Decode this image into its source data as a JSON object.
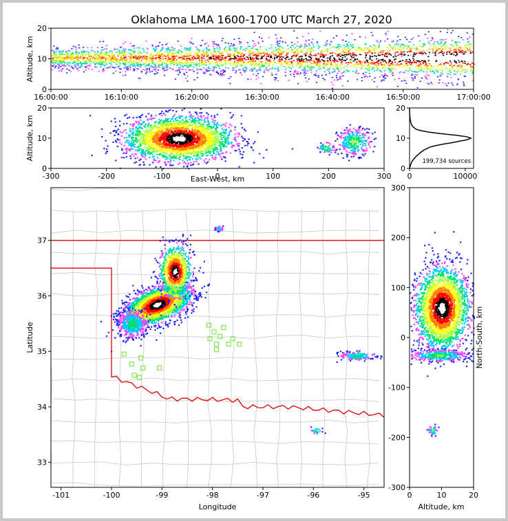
{
  "figure": {
    "title": "Oklahoma LMA 1600-1700 UTC March 27, 2020",
    "source_count_label": "199,734 sources"
  },
  "colors": {
    "state_border": "#e00000",
    "county_lines": "#c8c8c8",
    "stations": "#7fe84a",
    "density_ramp": [
      "#2020ff",
      "#ff40ff",
      "#00c8ff",
      "#00e070",
      "#a0ff40",
      "#ffff00",
      "#ff8000",
      "#ff0000",
      "#000000",
      "#ffffff"
    ]
  },
  "chart_data": [
    {
      "id": "time-height",
      "type": "heatmap",
      "xlabel": "",
      "ylabel": "Altitude, km",
      "x_ticks": [
        "16:00:00",
        "16:10:00",
        "16:20:00",
        "16:30:00",
        "16:40:00",
        "16:50:00",
        "17:00:00"
      ],
      "xlim": [
        "16:00:00",
        "17:00:00"
      ],
      "ylim": [
        0,
        20
      ],
      "y_ticks": [
        0,
        10,
        20
      ]
    },
    {
      "id": "ew-height",
      "type": "heatmap",
      "xlabel": "East-West, km",
      "ylabel": "Altitude, km",
      "xlim": [
        -300,
        300
      ],
      "x_ticks": [
        -300,
        -200,
        -100,
        0,
        100,
        200,
        300
      ],
      "ylim": [
        0,
        20
      ],
      "y_ticks": [
        0,
        10,
        20
      ],
      "clusters": [
        {
          "x": -70,
          "alt": 10,
          "extent_x": 95,
          "extent_alt": 8
        },
        {
          "x": 245,
          "alt": 9,
          "extent_x": 30,
          "extent_alt": 5
        },
        {
          "x": 195,
          "alt": 7,
          "extent_x": 15,
          "extent_alt": 2
        }
      ]
    },
    {
      "id": "altitude-histogram",
      "type": "line",
      "xlabel": "",
      "ylabel": "",
      "xlim": [
        0,
        11500
      ],
      "x_ticks": [
        0,
        10000
      ],
      "ylim": [
        0,
        20
      ],
      "y_ticks": [
        0,
        10,
        20
      ],
      "series": [
        {
          "alt": [
            0,
            1,
            2,
            3,
            4,
            5,
            6,
            7,
            7.5,
            8,
            8.5,
            9,
            9.5,
            10,
            10.5,
            11,
            11.5,
            12,
            12.5,
            13,
            14,
            15,
            16,
            17,
            18,
            19,
            20
          ],
          "count": [
            0,
            150,
            350,
            700,
            1200,
            1800,
            2500,
            3600,
            4600,
            6000,
            7600,
            9000,
            10400,
            11000,
            10200,
            8200,
            5600,
            3500,
            2000,
            1100,
            500,
            250,
            120,
            60,
            30,
            10,
            0
          ]
        }
      ]
    },
    {
      "id": "plan-view",
      "type": "heatmap",
      "xlabel": "Longitude",
      "ylabel": "Latitude",
      "xlim": [
        -101.2,
        -94.6
      ],
      "x_ticks": [
        -101,
        -100,
        -99,
        -98,
        -97,
        -96,
        -95
      ],
      "ylim": [
        32.55,
        37.95
      ],
      "y_ticks": [
        33,
        34,
        35,
        36,
        37
      ],
      "stations": [
        [
          -99.75,
          34.95
        ],
        [
          -99.6,
          34.77
        ],
        [
          -99.42,
          34.88
        ],
        [
          -99.38,
          34.7
        ],
        [
          -99.55,
          34.57
        ],
        [
          -99.45,
          34.53
        ],
        [
          -99.05,
          34.7
        ],
        [
          -98.07,
          35.47
        ],
        [
          -97.97,
          35.35
        ],
        [
          -97.85,
          35.27
        ],
        [
          -98.05,
          35.23
        ],
        [
          -97.92,
          35.13
        ],
        [
          -97.78,
          35.43
        ],
        [
          -97.6,
          35.23
        ],
        [
          -97.47,
          35.13
        ],
        [
          -97.68,
          35.13
        ],
        [
          -97.92,
          35.03
        ]
      ],
      "clusters": [
        {
          "lon": -99.1,
          "lat": 35.85,
          "extent_lon": 0.55,
          "extent_lat": 0.35
        },
        {
          "lon": -98.75,
          "lat": 36.45,
          "extent_lon": 0.3,
          "extent_lat": 0.45
        },
        {
          "lon": -99.6,
          "lat": 35.5,
          "extent_lon": 0.3,
          "extent_lat": 0.25
        },
        {
          "lon": -95.15,
          "lat": 34.93,
          "extent_lon": 0.35,
          "extent_lat": 0.08
        },
        {
          "lon": -97.88,
          "lat": 37.22,
          "extent_lon": 0.08,
          "extent_lat": 0.05
        },
        {
          "lon": -95.95,
          "lat": 33.58,
          "extent_lon": 0.12,
          "extent_lat": 0.06
        }
      ]
    },
    {
      "id": "ns-height",
      "type": "heatmap",
      "xlabel": "Altitude, km",
      "ylabel": "North-South, km",
      "xlim": [
        0,
        20
      ],
      "x_ticks": [
        0,
        10,
        20
      ],
      "ylim": [
        -300,
        300
      ],
      "y_ticks": [
        -300,
        -200,
        -100,
        0,
        100,
        200,
        300
      ],
      "clusters": [
        {
          "alt": 10,
          "y": 60,
          "extent_alt": 9,
          "extent_y": 80
        },
        {
          "alt": 9,
          "y": -35,
          "extent_alt": 10,
          "extent_y": 12
        },
        {
          "alt": 7,
          "y": -185,
          "extent_alt": 1.5,
          "extent_y": 10
        }
      ]
    }
  ]
}
